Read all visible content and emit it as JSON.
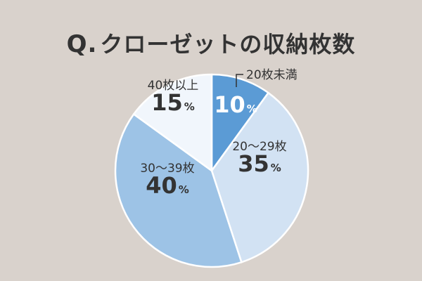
{
  "title": {
    "q_mark": "Q.",
    "text": "クローゼットの収納枚数"
  },
  "chart_data": {
    "type": "pie",
    "unit": "%",
    "slices": [
      {
        "label": "20枚未満",
        "value": 10,
        "color": "#5b9bd5",
        "text_color": "#ffffff",
        "label_outside": true
      },
      {
        "label": "20～29枚",
        "value": 35,
        "color": "#d2e2f3",
        "text_color": "#333333"
      },
      {
        "label": "30～39枚",
        "value": 40,
        "color": "#9dc3e6",
        "text_color": "#333333"
      },
      {
        "label": "40枚以上",
        "value": 15,
        "color": "#f1f6fc",
        "text_color": "#333333"
      }
    ],
    "start": "12 o'clock, clockwise",
    "legend": "none"
  }
}
